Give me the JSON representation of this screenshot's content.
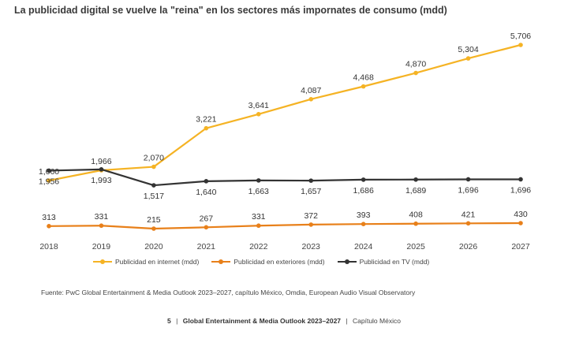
{
  "chart_data": {
    "type": "line",
    "title": "La publicidad digital se vuelve la \"reina\" en los sectores más impornates de consumo (mdd)",
    "categories": [
      "2018",
      "2019",
      "2020",
      "2021",
      "2022",
      "2023",
      "2024",
      "2025",
      "2026",
      "2027"
    ],
    "series": [
      {
        "name": "Publicidad en internet (mdd)",
        "color": "#f5b324",
        "values": [
          1660,
          1966,
          2070,
          3221,
          3641,
          4087,
          4468,
          4870,
          5304,
          5706
        ],
        "labels": [
          "1,660",
          "1,966",
          "2,070",
          "3,221",
          "3,641",
          "4,087",
          "4,468",
          "4,870",
          "5,304",
          "5,706"
        ]
      },
      {
        "name": "Publicidad en exteriores (mdd)",
        "color": "#e8801a",
        "values": [
          313,
          331,
          215,
          267,
          331,
          372,
          393,
          408,
          421,
          430
        ],
        "labels": [
          "313",
          "331",
          "215",
          "267",
          "331",
          "372",
          "393",
          "408",
          "421",
          "430"
        ]
      },
      {
        "name": "Publicidad en TV (mdd)",
        "color": "#333333",
        "values": [
          1956,
          1993,
          1517,
          1640,
          1663,
          1657,
          1686,
          1689,
          1696,
          1696
        ],
        "labels": [
          "1,956",
          "1,993",
          "1,517",
          "1,640",
          "1,663",
          "1,657",
          "1,686",
          "1,689",
          "1,696",
          "1,696"
        ]
      }
    ],
    "legend_position": "bottom",
    "grid": false
  },
  "source": "Fuente: PwC Global Entertainment & Media Outlook 2023–2027, capítulo México, Omdia, European Audio Visual Observatory",
  "footer": {
    "page": "5",
    "sep1": "|",
    "report": "Global Entertainment & Media Outlook 2023–2027",
    "sep2": "|",
    "chapter": "Capítulo México"
  }
}
